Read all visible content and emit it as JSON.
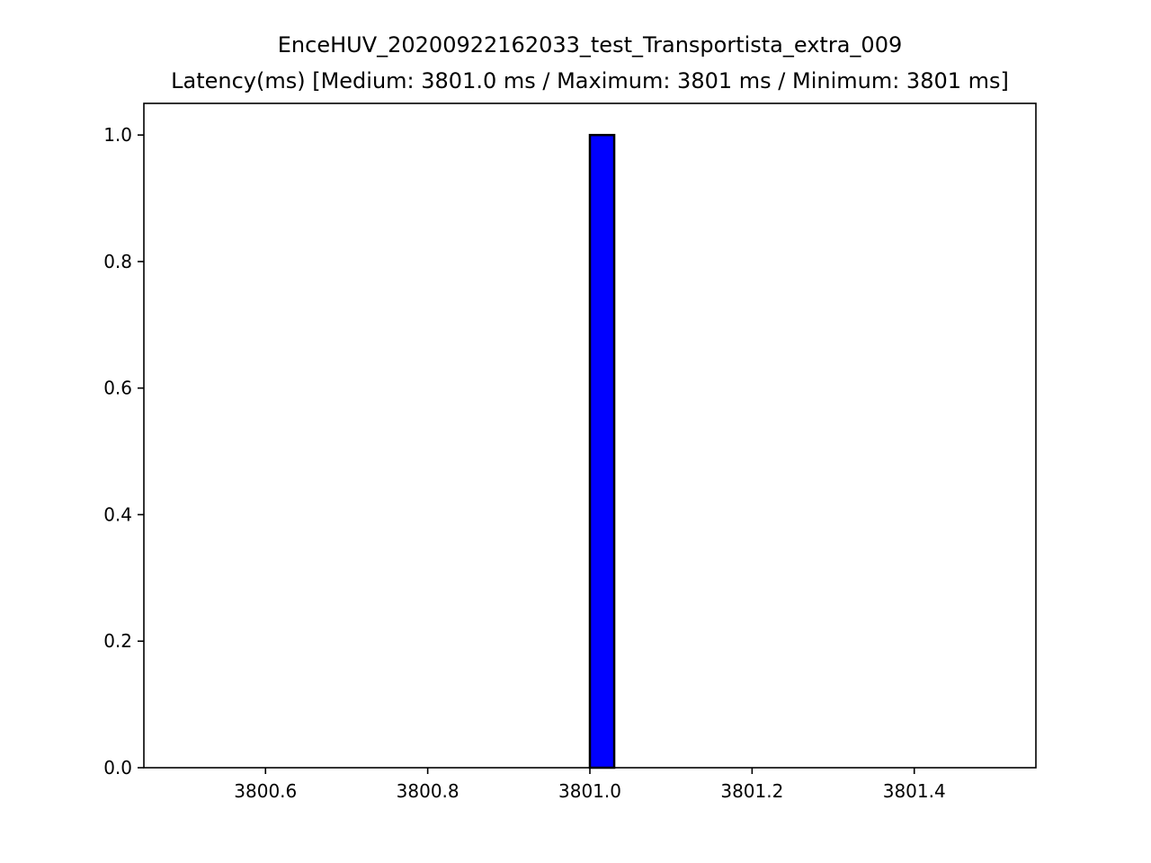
{
  "chart_data": {
    "type": "bar",
    "title": "EnceHUV_20200922162033_test_Transportista_extra_009",
    "subtitle": "Latency(ms) [Medium: 3801.0 ms / Maximum: 3801 ms / Minimum: 3801 ms]",
    "xlabel": "",
    "ylabel": "",
    "xlim": [
      3800.45,
      3801.55
    ],
    "ylim": [
      0,
      1.05
    ],
    "x_ticks": [
      "3800.6",
      "3800.8",
      "3801.0",
      "3801.2",
      "3801.4"
    ],
    "y_ticks": [
      "0.0",
      "0.2",
      "0.4",
      "0.6",
      "0.8",
      "1.0"
    ],
    "bars": [
      {
        "x_start": 3801.0,
        "x_end": 3801.03,
        "value": 1.0
      }
    ],
    "grid": false,
    "colors": {
      "bar_fill": "#0000ff",
      "bar_edge": "#000000",
      "axes": "#000000"
    }
  }
}
